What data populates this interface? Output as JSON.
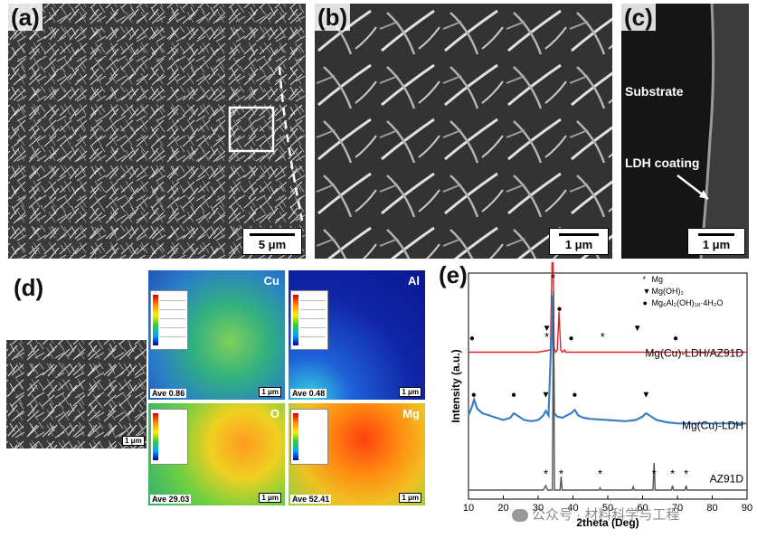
{
  "panels": {
    "a": {
      "label": "(a)",
      "scale": "5 μm"
    },
    "b": {
      "label": "(b)",
      "scale": "1 μm"
    },
    "c": {
      "label": "(c)",
      "scale": "1 μm",
      "substrate": "Substrate",
      "coating": "LDH coating"
    },
    "d": {
      "label": "(d)",
      "sem_scale": "1 μm",
      "maps": [
        {
          "element": "Cu",
          "ave": "Ave 0.86",
          "scale": "1 μm"
        },
        {
          "element": "Al",
          "ave": "Ave 0.48",
          "scale": "1 μm"
        },
        {
          "element": "O",
          "ave": "Ave 29.03",
          "scale": "1 μm"
        },
        {
          "element": "Mg",
          "ave": "Ave 52.41",
          "scale": "1 μm"
        }
      ]
    },
    "e": {
      "label": "(e)"
    }
  },
  "watermark": "公众号 · 材料科学与工程",
  "chart_data": {
    "type": "line",
    "xlabel": "2theta (Deg)",
    "ylabel": "Intensity (a.u.)",
    "xlim": [
      10,
      90
    ],
    "xticks": [
      "10",
      "20",
      "30",
      "40",
      "50",
      "60",
      "70",
      "80",
      "90"
    ],
    "legend": [
      {
        "symbol": "*",
        "text": "Mg"
      },
      {
        "symbol": "▼",
        "text": "Mg(OH)₂"
      },
      {
        "symbol": "●",
        "text": "Mg₆Al₂(OH)₁₈·4H₂O"
      }
    ],
    "series": [
      {
        "name": "Mg(Cu)-LDH/AZ91D",
        "color": "#e0202a",
        "offset": 0.65,
        "x": [
          10,
          30,
          33.5,
          34.2,
          34.6,
          35.0,
          35.5,
          36.0,
          36.5,
          37.0,
          37.6,
          38,
          50,
          70,
          90
        ],
        "y": [
          0,
          0,
          0.01,
          0.55,
          0.02,
          0,
          0.01,
          0.18,
          0.01,
          0,
          0.01,
          0,
          0,
          0,
          0
        ]
      },
      {
        "name": "Mg(Cu)-LDH",
        "color": "#3d7fc4",
        "offset": 0.35,
        "x": [
          10,
          11,
          11.6,
          12.5,
          14,
          16,
          18,
          20,
          22,
          23,
          24,
          26,
          28,
          30,
          31.5,
          32.2,
          33,
          34.2,
          34.6,
          35.5,
          37,
          39.5,
          40.5,
          41.5,
          43,
          45,
          50,
          55,
          58,
          60,
          61,
          62,
          64,
          67,
          70,
          75,
          80,
          85,
          90
        ],
        "y": [
          0.02,
          0.06,
          0.09,
          0.05,
          0.03,
          0.02,
          0.01,
          0.0,
          0.01,
          0.03,
          0.02,
          0.0,
          -0.005,
          0.0,
          0.02,
          0.04,
          0.02,
          0.55,
          0.03,
          0.015,
          0.01,
          0.03,
          0.045,
          0.02,
          0.01,
          0.005,
          0.0,
          -0.005,
          0.0,
          0.015,
          0.03,
          0.02,
          0.0,
          -0.01,
          -0.015,
          -0.015,
          -0.015,
          -0.015,
          -0.015
        ]
      },
      {
        "name": "AZ91D",
        "color": "#555555",
        "offset": 0.04,
        "x": [
          10,
          31.5,
          32.2,
          32.7,
          34.1,
          34.4,
          34.7,
          36.3,
          36.6,
          36.9,
          47.5,
          47.8,
          48.1,
          57.0,
          57.3,
          57.6,
          63.0,
          63.3,
          63.6,
          68.3,
          68.6,
          68.9,
          72.2,
          72.5,
          72.8,
          90
        ],
        "y": [
          0,
          0,
          0.02,
          0,
          0,
          0.88,
          0,
          0,
          0.06,
          0,
          0,
          0.01,
          0,
          0,
          0.015,
          0,
          0,
          0.12,
          0,
          0,
          0.02,
          0,
          0,
          0.02,
          0,
          0
        ]
      }
    ],
    "markers": [
      {
        "series": "Mg(Cu)-LDH/AZ91D",
        "symbols": [
          {
            "x": 11,
            "s": "●"
          },
          {
            "x": 32.5,
            "s": "▼"
          },
          {
            "x": 32.5,
            "s": "*"
          },
          {
            "x": 36.1,
            "s": "●"
          },
          {
            "x": 39.5,
            "s": "●"
          },
          {
            "x": 48.5,
            "s": "*"
          },
          {
            "x": 58.5,
            "s": "▼"
          },
          {
            "x": 69.5,
            "s": "●"
          }
        ]
      },
      {
        "series": "Mg(Cu)-LDH",
        "symbols": [
          {
            "x": 11.5,
            "s": "●"
          },
          {
            "x": 23,
            "s": "●"
          },
          {
            "x": 32.2,
            "s": "▼"
          },
          {
            "x": 40.5,
            "s": "●"
          },
          {
            "x": 61,
            "s": "▼"
          }
        ]
      },
      {
        "series": "AZ91D",
        "symbols": [
          {
            "x": 32.2,
            "s": "*"
          },
          {
            "x": 36.6,
            "s": "*"
          },
          {
            "x": 47.8,
            "s": "*"
          },
          {
            "x": 63.3,
            "s": "*"
          },
          {
            "x": 68.6,
            "s": "*"
          },
          {
            "x": 72.5,
            "s": "*"
          }
        ]
      }
    ],
    "top_star": "*"
  }
}
